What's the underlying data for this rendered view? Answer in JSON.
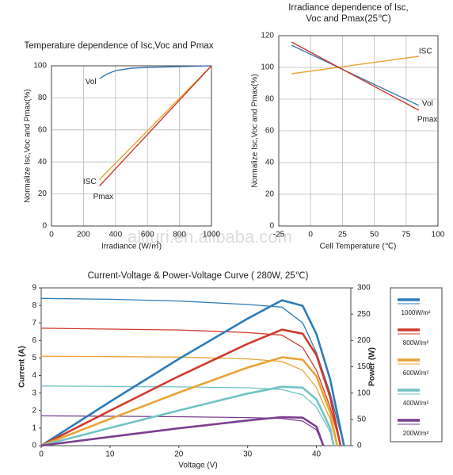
{
  "chart_data": [
    {
      "type": "line",
      "title": "Temperature dependence of Isc,Voc and Pmax",
      "xlabel": "Irradiance (W/㎡)",
      "ylabel": "Normalize Isc,Voc and Pmax(%)",
      "xlim": [
        0,
        1000
      ],
      "xticks": [
        0,
        200,
        400,
        600,
        800,
        1000
      ],
      "ylim": [
        0,
        100
      ],
      "yticks": [
        0,
        20,
        40,
        60,
        80,
        100
      ],
      "grid": true,
      "series": [
        {
          "name": "Vol",
          "color": "#3a78b5",
          "x": [
            300,
            350,
            400,
            500,
            600,
            800,
            1000
          ],
          "values": [
            92,
            95,
            97,
            98.5,
            99,
            99.5,
            100
          ]
        },
        {
          "name": "ISC",
          "color": "#e8a436",
          "x": [
            300,
            1000
          ],
          "values": [
            29,
            100
          ]
        },
        {
          "name": "Pmax",
          "color": "#c83a2a",
          "x": [
            300,
            1000
          ],
          "values": [
            25,
            100
          ]
        }
      ]
    },
    {
      "type": "line",
      "title": [
        "Irradiance dependence of Isc,",
        "Voc and Pmax(25℃)"
      ],
      "xlabel": "Cell Temperature (℃)",
      "ylabel": "Normalize Isc,Voc and Pmax(%)",
      "xlim": [
        -25,
        100
      ],
      "xticks": [
        -25,
        0,
        25,
        50,
        75,
        100
      ],
      "ylim": [
        0,
        120
      ],
      "yticks": [
        0,
        20,
        40,
        60,
        80,
        100,
        120
      ],
      "grid": true,
      "series": [
        {
          "name": "ISC",
          "color": "#e8a436",
          "x": [
            -15,
            85
          ],
          "values": [
            96,
            107
          ]
        },
        {
          "name": "Vol",
          "color": "#3a78b5",
          "x": [
            -15,
            85
          ],
          "values": [
            114,
            76
          ]
        },
        {
          "name": "Pmax",
          "color": "#c83a2a",
          "x": [
            -15,
            85
          ],
          "values": [
            116,
            73
          ]
        }
      ]
    },
    {
      "type": "line",
      "title": "Current-Voltage & Power-Voltage Curve ( 280W, 25℃)",
      "xlabel": "Voltage (V)",
      "ylabel": "Current (A)",
      "y2label": "Power (W)",
      "xlim": [
        0,
        45
      ],
      "xticks": [
        0,
        10,
        20,
        30,
        40
      ],
      "ylim": [
        0,
        9
      ],
      "yticks": [
        0,
        1,
        2,
        3,
        4,
        5,
        6,
        7,
        8,
        9
      ],
      "y2lim": [
        0,
        300
      ],
      "y2ticks": [
        0,
        50,
        100,
        150,
        200,
        250,
        300
      ],
      "grid": false,
      "legend": "right",
      "series": [
        {
          "name": "1000W/m²",
          "color": "#2e7cb8",
          "x": [
            0,
            10,
            20,
            30,
            35,
            38,
            40,
            42,
            44
          ],
          "values": [
            8.4,
            8.35,
            8.25,
            8.05,
            7.9,
            7.0,
            5.3,
            3.0,
            0
          ]
        },
        {
          "name": "800W/m²",
          "color": "#d03a2c",
          "x": [
            0,
            10,
            20,
            30,
            35,
            38,
            40,
            42,
            43.5
          ],
          "values": [
            6.7,
            6.65,
            6.6,
            6.45,
            6.3,
            5.6,
            4.3,
            2.2,
            0
          ]
        },
        {
          "name": "600W/m²",
          "color": "#e8a436",
          "x": [
            0,
            10,
            20,
            30,
            35,
            38,
            40,
            42,
            43
          ],
          "values": [
            5.1,
            5.08,
            5.05,
            4.95,
            4.8,
            4.3,
            3.3,
            1.5,
            0
          ]
        },
        {
          "name": "400W/m²",
          "color": "#72c2c6",
          "x": [
            0,
            10,
            20,
            30,
            35,
            38,
            40,
            42,
            42.5
          ],
          "values": [
            3.4,
            3.38,
            3.35,
            3.3,
            3.2,
            2.9,
            2.2,
            0.8,
            0
          ]
        },
        {
          "name": "200W/m²",
          "color": "#7b3f8e",
          "x": [
            0,
            10,
            20,
            30,
            35,
            38,
            40,
            41
          ],
          "values": [
            1.7,
            1.68,
            1.65,
            1.6,
            1.55,
            1.4,
            0.9,
            0
          ]
        },
        {
          "color": "#2e7cb8",
          "axis": "y2",
          "x": [
            0,
            10,
            20,
            30,
            35,
            38,
            40,
            42,
            44
          ],
          "values": [
            0,
            83.5,
            165,
            241.5,
            276.5,
            266,
            212,
            126,
            0
          ]
        },
        {
          "color": "#d03a2c",
          "axis": "y2",
          "x": [
            0,
            10,
            20,
            30,
            35,
            38,
            40,
            42,
            43.5
          ],
          "values": [
            0,
            66.5,
            132,
            193.5,
            220.5,
            212.8,
            172,
            92.4,
            0
          ]
        },
        {
          "color": "#e8a436",
          "axis": "y2",
          "x": [
            0,
            10,
            20,
            30,
            35,
            38,
            40,
            42,
            43
          ],
          "values": [
            0,
            50.8,
            101,
            148.5,
            168,
            163.4,
            132,
            63,
            0
          ]
        },
        {
          "color": "#72c2c6",
          "axis": "y2",
          "x": [
            0,
            10,
            20,
            30,
            35,
            38,
            40,
            42,
            42.5
          ],
          "values": [
            0,
            33.8,
            67,
            99,
            112,
            110.2,
            88,
            33.6,
            0
          ]
        },
        {
          "color": "#7b3f8e",
          "axis": "y2",
          "x": [
            0,
            10,
            20,
            30,
            35,
            38,
            40,
            41
          ],
          "values": [
            0,
            16.8,
            33,
            48,
            54.3,
            53.2,
            36,
            0
          ]
        }
      ]
    }
  ],
  "watermark": "alifuri.en.alibaba.com"
}
